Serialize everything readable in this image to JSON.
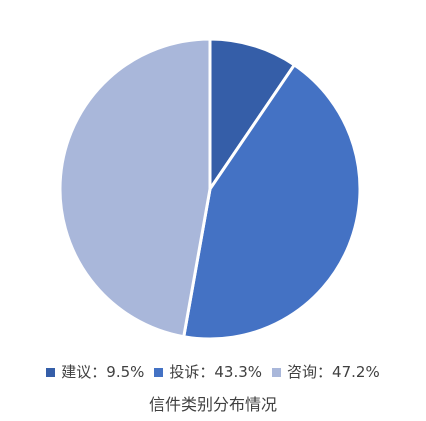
{
  "chart_data": {
    "type": "pie",
    "title": "信件类别分布情况",
    "categories": [
      "建议",
      "投诉",
      "咨询"
    ],
    "values": [
      9.5,
      43.3,
      47.2
    ],
    "labels": [
      "建议：9.5%",
      "投诉：43.3%",
      "咨询：47.2%"
    ],
    "colors": [
      "#355ea8",
      "#4472c4",
      "#a9b7da"
    ],
    "legend_position": "bottom",
    "start_angle": "12 o'clock",
    "direction": "clockwise"
  }
}
